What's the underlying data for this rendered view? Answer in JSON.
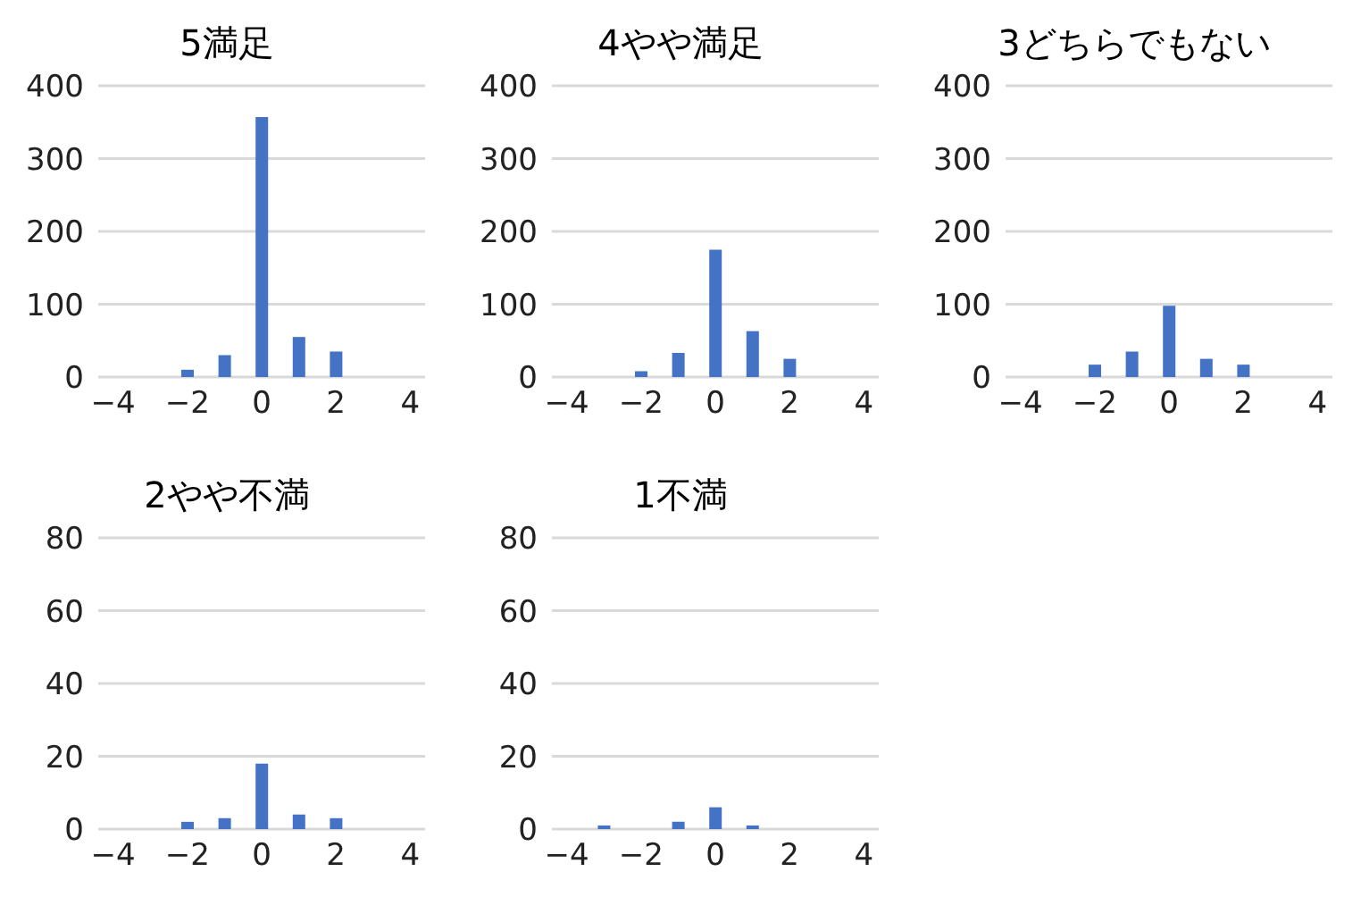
{
  "chart_data": [
    {
      "type": "bar",
      "title": "5満足",
      "x": [
        -2,
        -1,
        0,
        1,
        2
      ],
      "values": [
        10,
        30,
        357,
        55,
        35
      ],
      "color": "#4472c4",
      "xlim": [
        -4.4,
        4.4
      ],
      "xticks": [
        -4,
        -2,
        0,
        2,
        4
      ],
      "ylim": [
        0,
        400
      ],
      "yticks": [
        0,
        100,
        200,
        300,
        400
      ],
      "grid": "y",
      "legend": false
    },
    {
      "type": "bar",
      "title": "4やや満足",
      "x": [
        -2,
        -1,
        0,
        1,
        2
      ],
      "values": [
        8,
        33,
        175,
        63,
        25
      ],
      "color": "#4472c4",
      "xlim": [
        -4.4,
        4.4
      ],
      "xticks": [
        -4,
        -2,
        0,
        2,
        4
      ],
      "ylim": [
        0,
        400
      ],
      "yticks": [
        0,
        100,
        200,
        300,
        400
      ],
      "grid": "y",
      "legend": false
    },
    {
      "type": "bar",
      "title": "3どちらでもない",
      "x": [
        -2,
        -1,
        0,
        1,
        2
      ],
      "values": [
        17,
        35,
        98,
        25,
        17
      ],
      "color": "#4472c4",
      "xlim": [
        -4.4,
        4.4
      ],
      "xticks": [
        -4,
        -2,
        0,
        2,
        4
      ],
      "ylim": [
        0,
        400
      ],
      "yticks": [
        0,
        100,
        200,
        300,
        400
      ],
      "grid": "y",
      "legend": false
    },
    {
      "type": "bar",
      "title": "2やや不満",
      "x": [
        -2,
        -1,
        0,
        1,
        2
      ],
      "values": [
        2,
        3,
        18,
        4,
        3
      ],
      "color": "#4472c4",
      "xlim": [
        -4.4,
        4.4
      ],
      "xticks": [
        -4,
        -2,
        0,
        2,
        4
      ],
      "ylim": [
        0,
        80
      ],
      "yticks": [
        0,
        20,
        40,
        60,
        80
      ],
      "grid": "y",
      "legend": false
    },
    {
      "type": "bar",
      "title": "1不満",
      "x": [
        -3,
        -1,
        0,
        1
      ],
      "values": [
        1,
        2,
        6,
        1
      ],
      "color": "#4472c4",
      "xlim": [
        -4.4,
        4.4
      ],
      "xticks": [
        -4,
        -2,
        0,
        2,
        4
      ],
      "ylim": [
        0,
        80
      ],
      "yticks": [
        0,
        20,
        40,
        60,
        80
      ],
      "grid": "y",
      "legend": false
    }
  ]
}
